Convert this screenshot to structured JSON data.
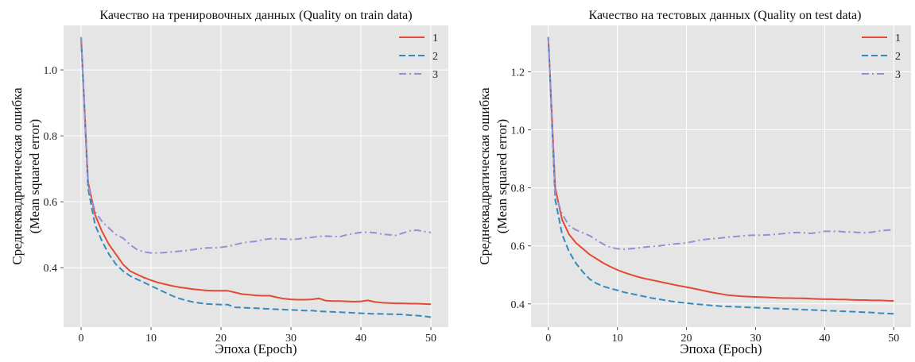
{
  "colors": {
    "plot_background": "#e5e5e5",
    "grid": "#ffffff",
    "series_1": "#e24a33",
    "series_2": "#348abd",
    "series_3": "#988ed5"
  },
  "chart_data": [
    {
      "type": "line",
      "title": "Качество на тренировочных данных (Quality on train data)",
      "xlabel": "Эпоха (Epoch)",
      "ylabel": "Среднеквадратическая ошибка",
      "ylabel2": "(Mean squared error)",
      "xlim": [
        -2.5,
        52.5
      ],
      "ylim": [
        0.22,
        1.135
      ],
      "xticks": [
        0,
        10,
        20,
        30,
        40,
        50
      ],
      "yticks": [
        0.4,
        0.6,
        0.8,
        1.0
      ],
      "ytick_labels": [
        "0.4",
        "0.6",
        "0.8",
        "1.0"
      ],
      "grid": true,
      "legend_position": "top-right",
      "series": [
        {
          "name": "1",
          "style": "solid",
          "x": [
            0,
            1,
            2,
            3,
            4,
            5,
            6,
            7,
            8,
            9,
            10,
            11,
            12,
            13,
            14,
            15,
            16,
            17,
            18,
            19,
            20,
            21,
            22,
            23,
            24,
            25,
            26,
            27,
            28,
            29,
            30,
            31,
            32,
            33,
            34,
            35,
            36,
            37,
            38,
            39,
            40,
            41,
            42,
            43,
            44,
            45,
            46,
            47,
            48,
            49,
            50
          ],
          "y": [
            1.1,
            0.66,
            0.56,
            0.51,
            0.47,
            0.44,
            0.41,
            0.39,
            0.38,
            0.37,
            0.362,
            0.355,
            0.35,
            0.345,
            0.341,
            0.338,
            0.335,
            0.333,
            0.331,
            0.33,
            0.33,
            0.33,
            0.325,
            0.32,
            0.318,
            0.316,
            0.315,
            0.315,
            0.31,
            0.306,
            0.304,
            0.303,
            0.303,
            0.304,
            0.307,
            0.3,
            0.299,
            0.299,
            0.298,
            0.297,
            0.298,
            0.301,
            0.296,
            0.294,
            0.293,
            0.292,
            0.292,
            0.291,
            0.291,
            0.29,
            0.289
          ]
        },
        {
          "name": "2",
          "style": "dashed",
          "x": [
            0,
            1,
            2,
            3,
            4,
            5,
            6,
            7,
            8,
            9,
            10,
            11,
            12,
            13,
            14,
            15,
            16,
            17,
            18,
            19,
            20,
            21,
            22,
            23,
            24,
            25,
            26,
            27,
            28,
            29,
            30,
            31,
            32,
            33,
            34,
            35,
            36,
            37,
            38,
            39,
            40,
            41,
            42,
            43,
            44,
            45,
            46,
            47,
            48,
            49,
            50
          ],
          "y": [
            1.1,
            0.64,
            0.53,
            0.48,
            0.44,
            0.41,
            0.39,
            0.375,
            0.365,
            0.355,
            0.345,
            0.335,
            0.325,
            0.315,
            0.307,
            0.301,
            0.296,
            0.293,
            0.29,
            0.289,
            0.288,
            0.288,
            0.28,
            0.279,
            0.278,
            0.277,
            0.276,
            0.275,
            0.274,
            0.273,
            0.272,
            0.271,
            0.27,
            0.27,
            0.268,
            0.267,
            0.266,
            0.265,
            0.264,
            0.263,
            0.262,
            0.261,
            0.26,
            0.26,
            0.259,
            0.259,
            0.258,
            0.256,
            0.255,
            0.253,
            0.25
          ]
        },
        {
          "name": "3",
          "style": "dashdot",
          "x": [
            0,
            1,
            2,
            3,
            4,
            5,
            6,
            7,
            8,
            9,
            10,
            11,
            12,
            13,
            14,
            15,
            16,
            17,
            18,
            19,
            20,
            21,
            22,
            23,
            24,
            25,
            26,
            27,
            28,
            29,
            30,
            31,
            32,
            33,
            34,
            35,
            36,
            37,
            38,
            39,
            40,
            41,
            42,
            43,
            44,
            45,
            46,
            47,
            48,
            49,
            50
          ],
          "y": [
            1.1,
            0.65,
            0.57,
            0.54,
            0.52,
            0.5,
            0.49,
            0.47,
            0.455,
            0.448,
            0.445,
            0.445,
            0.446,
            0.448,
            0.45,
            0.452,
            0.455,
            0.458,
            0.46,
            0.46,
            0.462,
            0.465,
            0.47,
            0.475,
            0.478,
            0.48,
            0.485,
            0.488,
            0.488,
            0.487,
            0.486,
            0.487,
            0.49,
            0.492,
            0.495,
            0.496,
            0.495,
            0.494,
            0.5,
            0.504,
            0.507,
            0.508,
            0.506,
            0.502,
            0.5,
            0.498,
            0.505,
            0.512,
            0.514,
            0.51,
            0.507
          ]
        }
      ]
    },
    {
      "type": "line",
      "title": "Качество на тестовых данных (Quality on test data)",
      "xlabel": "Эпоха (Epoch)",
      "ylabel": "Среднеквадратическая ошибка",
      "ylabel2": "(Mean squared error)",
      "xlim": [
        -2.5,
        52.5
      ],
      "ylim": [
        0.32,
        1.36
      ],
      "xticks": [
        0,
        10,
        20,
        30,
        40,
        50
      ],
      "yticks": [
        0.4,
        0.6,
        0.8,
        1.0,
        1.2
      ],
      "ytick_labels": [
        "0.4",
        "0.6",
        "0.8",
        "1.0",
        "1.2"
      ],
      "grid": true,
      "legend_position": "top-right",
      "series": [
        {
          "name": "1",
          "style": "solid",
          "x": [
            0,
            1,
            2,
            3,
            4,
            5,
            6,
            7,
            8,
            9,
            10,
            11,
            12,
            13,
            14,
            15,
            16,
            17,
            18,
            19,
            20,
            21,
            22,
            23,
            24,
            25,
            26,
            27,
            28,
            29,
            30,
            31,
            32,
            33,
            34,
            35,
            36,
            37,
            38,
            39,
            40,
            41,
            42,
            43,
            44,
            45,
            46,
            47,
            48,
            49,
            50
          ],
          "y": [
            1.32,
            0.8,
            0.69,
            0.64,
            0.61,
            0.59,
            0.57,
            0.555,
            0.54,
            0.528,
            0.517,
            0.508,
            0.5,
            0.493,
            0.487,
            0.482,
            0.477,
            0.472,
            0.467,
            0.462,
            0.458,
            0.453,
            0.448,
            0.443,
            0.438,
            0.434,
            0.43,
            0.428,
            0.426,
            0.425,
            0.424,
            0.423,
            0.422,
            0.421,
            0.42,
            0.42,
            0.419,
            0.419,
            0.418,
            0.417,
            0.416,
            0.416,
            0.415,
            0.415,
            0.414,
            0.413,
            0.413,
            0.412,
            0.412,
            0.411,
            0.41
          ]
        },
        {
          "name": "2",
          "style": "dashed",
          "x": [
            0,
            1,
            2,
            3,
            4,
            5,
            6,
            7,
            8,
            9,
            10,
            11,
            12,
            13,
            14,
            15,
            16,
            17,
            18,
            19,
            20,
            21,
            22,
            23,
            24,
            25,
            26,
            27,
            28,
            29,
            30,
            31,
            32,
            33,
            34,
            35,
            36,
            37,
            38,
            39,
            40,
            41,
            42,
            43,
            44,
            45,
            46,
            47,
            48,
            49,
            50
          ],
          "y": [
            1.32,
            0.76,
            0.64,
            0.58,
            0.54,
            0.51,
            0.485,
            0.47,
            0.46,
            0.453,
            0.447,
            0.44,
            0.435,
            0.43,
            0.425,
            0.42,
            0.416,
            0.412,
            0.408,
            0.405,
            0.403,
            0.4,
            0.398,
            0.396,
            0.394,
            0.392,
            0.391,
            0.39,
            0.389,
            0.388,
            0.387,
            0.386,
            0.385,
            0.384,
            0.383,
            0.382,
            0.381,
            0.38,
            0.379,
            0.378,
            0.377,
            0.376,
            0.375,
            0.374,
            0.373,
            0.372,
            0.371,
            0.37,
            0.368,
            0.367,
            0.366
          ]
        },
        {
          "name": "3",
          "style": "dashdot",
          "x": [
            0,
            1,
            2,
            3,
            4,
            5,
            6,
            7,
            8,
            9,
            10,
            11,
            12,
            13,
            14,
            15,
            16,
            17,
            18,
            19,
            20,
            21,
            22,
            23,
            24,
            25,
            26,
            27,
            28,
            29,
            30,
            31,
            32,
            33,
            34,
            35,
            36,
            37,
            38,
            39,
            40,
            41,
            42,
            43,
            44,
            45,
            46,
            47,
            48,
            49,
            50
          ],
          "y": [
            1.32,
            0.78,
            0.71,
            0.67,
            0.655,
            0.645,
            0.635,
            0.62,
            0.605,
            0.595,
            0.59,
            0.588,
            0.59,
            0.593,
            0.596,
            0.598,
            0.6,
            0.603,
            0.606,
            0.608,
            0.61,
            0.615,
            0.62,
            0.623,
            0.625,
            0.627,
            0.63,
            0.632,
            0.634,
            0.636,
            0.637,
            0.637,
            0.638,
            0.64,
            0.642,
            0.645,
            0.646,
            0.645,
            0.643,
            0.646,
            0.65,
            0.65,
            0.65,
            0.648,
            0.648,
            0.646,
            0.645,
            0.648,
            0.652,
            0.654,
            0.656
          ]
        }
      ]
    }
  ]
}
